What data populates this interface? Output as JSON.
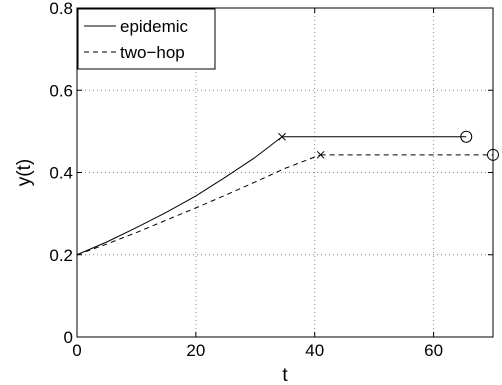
{
  "chart_data": {
    "type": "line",
    "xlabel": "t",
    "ylabel": "y(t)",
    "xlim": [
      0,
      70
    ],
    "ylim": [
      0,
      0.8
    ],
    "x_ticks": [
      0,
      20,
      40,
      60
    ],
    "x_tick_labels": [
      "0",
      "20",
      "40",
      "60"
    ],
    "y_ticks": [
      0,
      0.2,
      0.4,
      0.6,
      0.8
    ],
    "y_tick_labels": [
      "0",
      "0.2",
      "0.4",
      "0.6",
      "0.8"
    ],
    "grid": true,
    "legend_position": "top-left",
    "series": [
      {
        "name": "epidemic",
        "style": "solid",
        "color": "#000000",
        "points": [
          [
            0,
            0.2
          ],
          [
            5,
            0.231
          ],
          [
            10,
            0.266
          ],
          [
            15,
            0.303
          ],
          [
            20,
            0.343
          ],
          [
            25,
            0.389
          ],
          [
            30,
            0.437
          ],
          [
            34.5,
            0.487
          ]
        ],
        "plateau": [
          [
            34.5,
            0.487
          ],
          [
            65.5,
            0.487
          ]
        ],
        "markers": [
          {
            "shape": "x",
            "x": 34.5,
            "y": 0.487
          },
          {
            "shape": "circle",
            "x": 65.5,
            "y": 0.487
          }
        ]
      },
      {
        "name": "two−hop",
        "style": "dashed",
        "color": "#000000",
        "points": [
          [
            0,
            0.2
          ],
          [
            5,
            0.226
          ],
          [
            10,
            0.254
          ],
          [
            15,
            0.284
          ],
          [
            20,
            0.314
          ],
          [
            25,
            0.345
          ],
          [
            30,
            0.377
          ],
          [
            35,
            0.41
          ],
          [
            41,
            0.443
          ]
        ],
        "plateau": [
          [
            41,
            0.443
          ],
          [
            70,
            0.443
          ]
        ],
        "markers": [
          {
            "shape": "x",
            "x": 41,
            "y": 0.443
          },
          {
            "shape": "circle",
            "x": 70,
            "y": 0.443
          }
        ]
      }
    ]
  }
}
